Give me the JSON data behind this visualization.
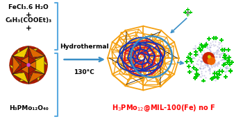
{
  "bg_color": "#ffffff",
  "title_color": "#ff0000",
  "reactant_line1": "FeCl₃.6 H₂O",
  "reactant_line2": "+",
  "reactant_line3": "C₆H₃(COOEt)₃",
  "reactant_line4": "+",
  "pom_label": "H₃PMo₁₂O₄₀",
  "arrow_label_top": "Hydrothermal",
  "arrow_label_bot": "130°C",
  "product_label": "H$_3$PMo$_{12}$@MIL-100(Fe) no F",
  "bracket_color": "#5aaae0",
  "arrow_color": "#3a8fc7",
  "mof_orange": "#f5a010",
  "mof_red": "#dd2020",
  "mof_blue": "#1133bb",
  "mof_black": "#111111",
  "pom_yellow": "#f0cc00",
  "pom_orange": "#e06800",
  "pom_red": "#aa1a00",
  "pom_purple": "#cc44cc",
  "product_green": "#00cc00",
  "product_green_dark": "#008800",
  "product_blue_dot": "#9999cc",
  "product_red_center": "#cc2200",
  "product_orange_center": "#ee6600",
  "product_yellow_center": "#cccc00",
  "small_cluster_green": "#00cc00",
  "small_cluster_gray": "#888888"
}
